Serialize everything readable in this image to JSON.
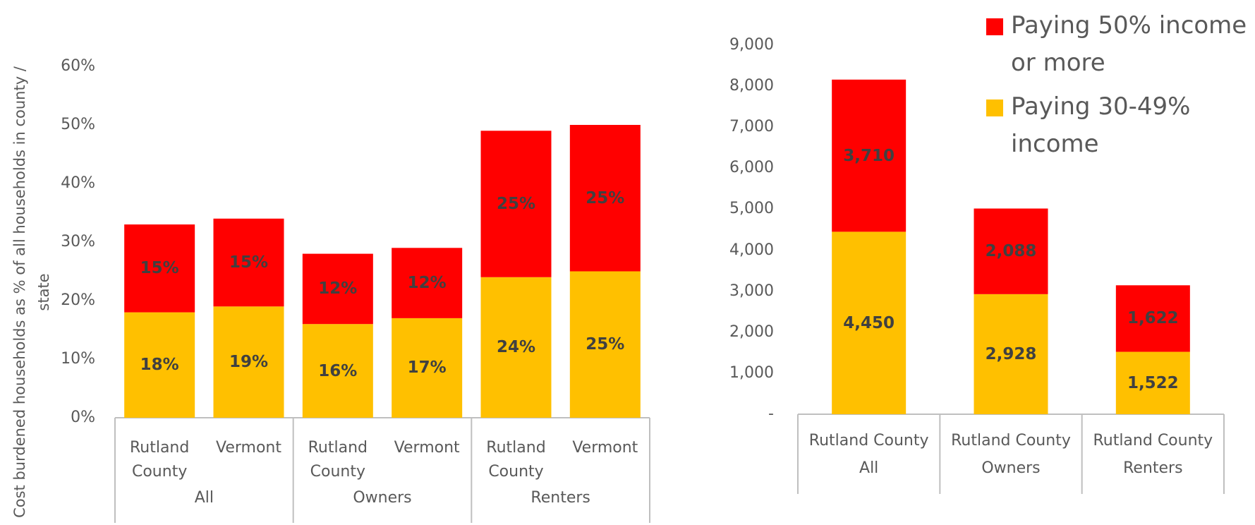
{
  "chart_data": [
    {
      "type": "bar",
      "stacked": true,
      "y_label": "Cost burdened households as % of all households in county / state",
      "categories": [
        "Rutland County",
        "Vermont",
        "Rutland County",
        "Vermont",
        "Rutland County",
        "Vermont"
      ],
      "category_groups": [
        "All",
        "Owners",
        "Renters"
      ],
      "series": [
        {
          "name": "Paying 30-49% income",
          "color": "#ffc000",
          "values": [
            18,
            19,
            16,
            17,
            24,
            25
          ],
          "value_labels": [
            "18%",
            "19%",
            "16%",
            "17%",
            "24%",
            "25%"
          ]
        },
        {
          "name": "Paying 50% income or more",
          "color": "#ff0000",
          "values": [
            15,
            15,
            12,
            12,
            25,
            25
          ],
          "value_labels": [
            "15%",
            "15%",
            "12%",
            "12%",
            "25%",
            "25%"
          ]
        }
      ],
      "ylim": [
        0,
        60
      ],
      "yticks": [
        {
          "value": 0,
          "label": "0%"
        },
        {
          "value": 10,
          "label": "10%"
        },
        {
          "value": 20,
          "label": "20%"
        },
        {
          "value": 30,
          "label": "30%"
        },
        {
          "value": 40,
          "label": "40%"
        },
        {
          "value": 50,
          "label": "50%"
        },
        {
          "value": 60,
          "label": "60%"
        }
      ]
    },
    {
      "type": "bar",
      "stacked": true,
      "categories": [
        "Rutland County",
        "Rutland County",
        "Rutland County"
      ],
      "category_groups": [
        "All",
        "Owners",
        "Renters"
      ],
      "series": [
        {
          "name": "Paying 30-49% income",
          "color": "#ffc000",
          "values": [
            4450,
            2928,
            1522
          ],
          "value_labels": [
            "4,450",
            "2,928",
            "1,522"
          ]
        },
        {
          "name": "Paying 50% income or more",
          "color": "#ff0000",
          "values": [
            3710,
            2088,
            1622
          ],
          "value_labels": [
            "3,710",
            "2,088",
            "1,622"
          ]
        }
      ],
      "ylim": [
        0,
        9000
      ],
      "yticks": [
        {
          "value": 0,
          "label": "-"
        },
        {
          "value": 1000,
          "label": "1,000"
        },
        {
          "value": 2000,
          "label": "2,000"
        },
        {
          "value": 3000,
          "label": "3,000"
        },
        {
          "value": 4000,
          "label": "4,000"
        },
        {
          "value": 5000,
          "label": "5,000"
        },
        {
          "value": 6000,
          "label": "6,000"
        },
        {
          "value": 7000,
          "label": "7,000"
        },
        {
          "value": 8000,
          "label": "8,000"
        },
        {
          "value": 9000,
          "label": "9,000"
        }
      ],
      "legend": "top-right"
    }
  ]
}
